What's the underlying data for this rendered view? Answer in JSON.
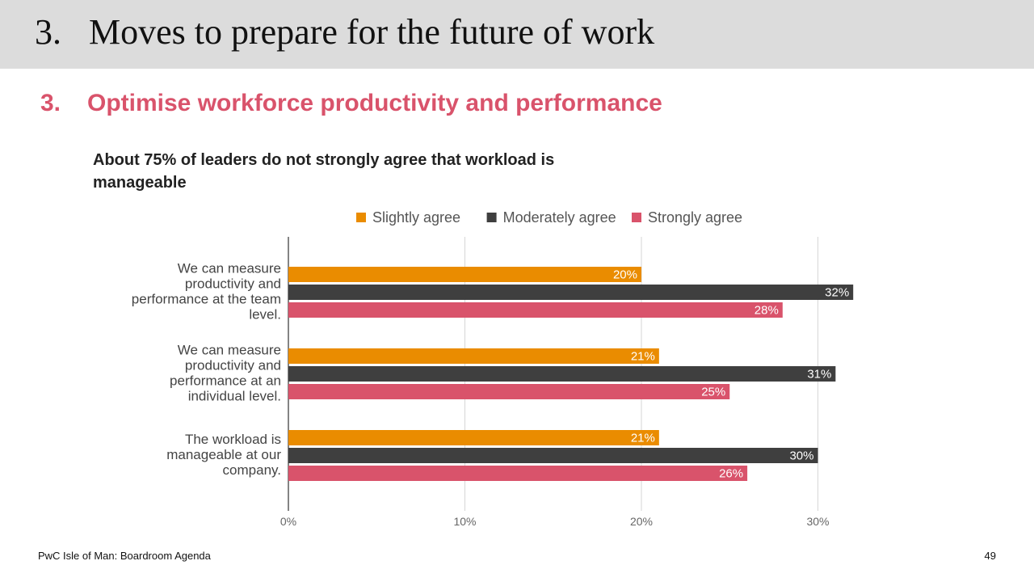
{
  "slide": {
    "title_number": "3.",
    "title": "Moves to prepare for the future of work",
    "subtitle_number": "3.",
    "subtitle": "Optimise workforce productivity and performance",
    "footer_left": "PwC Isle of Man: Boardroom Agenda",
    "page_number": "49"
  },
  "chart_data": {
    "type": "bar",
    "orientation": "horizontal",
    "title": "About 75% of leaders do not strongly agree that workload is manageable",
    "categories": [
      [
        "We can measure",
        "productivity and",
        "performance at the team",
        "level."
      ],
      [
        "We can measure",
        "productivity and",
        "performance at an",
        "individual level."
      ],
      [
        "The workload is",
        "manageable at our",
        "company."
      ]
    ],
    "series": [
      {
        "name": "Slightly agree",
        "color": "#ea8c00",
        "values": [
          20,
          21,
          21
        ],
        "labels": [
          "20%",
          "21%",
          "21%"
        ]
      },
      {
        "name": "Moderately agree",
        "color": "#3f3f3f",
        "values": [
          32,
          31,
          30
        ],
        "labels": [
          "32%",
          "31%",
          "30%"
        ]
      },
      {
        "name": "Strongly agree",
        "color": "#d9536b",
        "values": [
          28,
          25,
          26
        ],
        "labels": [
          "28%",
          "25%",
          "26%"
        ]
      }
    ],
    "x_ticks": [
      "0%",
      "10%",
      "20%",
      "30%"
    ],
    "xlim": [
      0,
      32
    ],
    "legend_position": "top",
    "grid": true
  }
}
